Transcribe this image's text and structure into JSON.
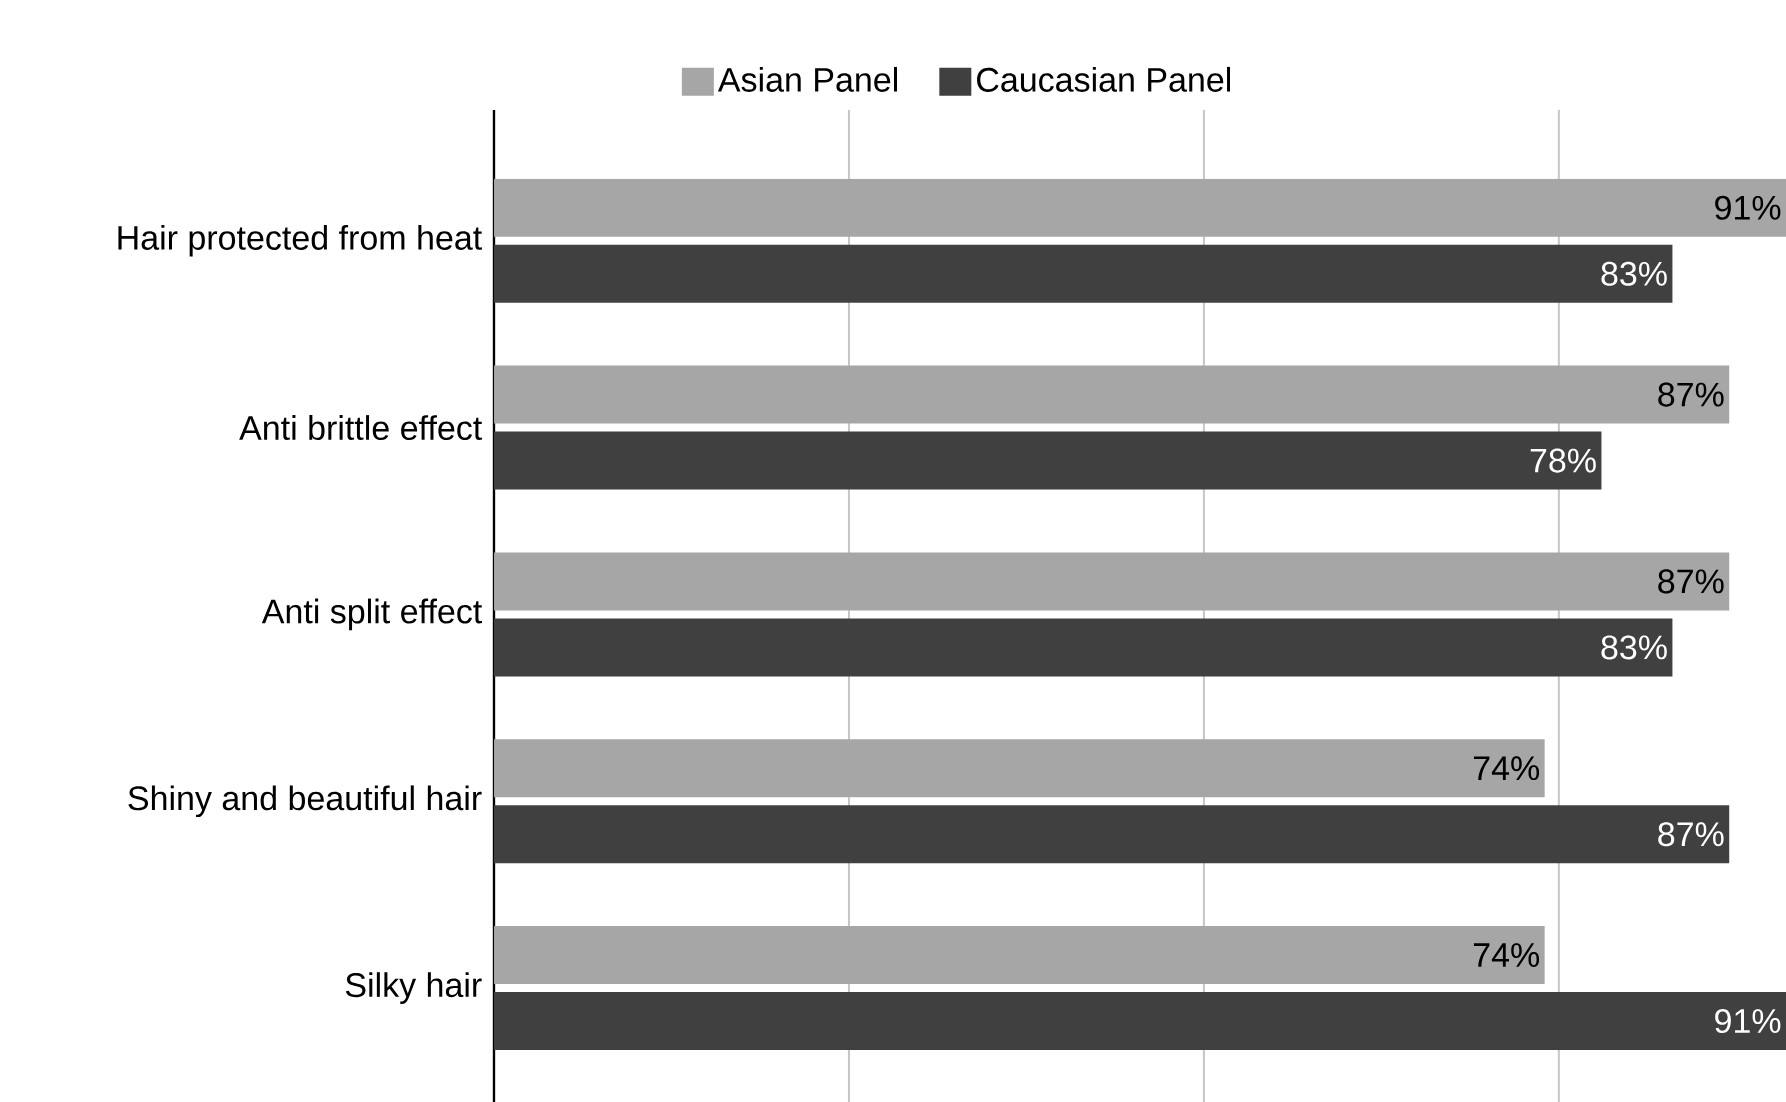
{
  "chart_data": {
    "type": "bar",
    "orientation": "horizontal",
    "categories": [
      "Hair protected from heat",
      "Anti brittle effect",
      "Anti split effect",
      "Shiny and beautiful hair",
      "Silky hair"
    ],
    "series": [
      {
        "name": "Asian Panel",
        "color": "#a6a6a6",
        "values": [
          91,
          87,
          87,
          74,
          74
        ],
        "value_labels": [
          "91%",
          "87%",
          "87%",
          "74%",
          "74%"
        ]
      },
      {
        "name": "Caucasian Panel",
        "color": "#404040",
        "values": [
          83,
          78,
          83,
          87,
          91
        ],
        "value_labels": [
          "83%",
          "78%",
          "83%",
          "87%",
          "91%"
        ]
      }
    ],
    "xlim": [
      0,
      91
    ],
    "xticks": [
      {
        "value": 0,
        "label": null
      },
      {
        "value": 25,
        "label": null
      },
      {
        "value": 50,
        "label": null
      },
      {
        "value": 75,
        "label": null
      }
    ],
    "grid": "x",
    "legend": "top",
    "tick_labels": "y"
  }
}
